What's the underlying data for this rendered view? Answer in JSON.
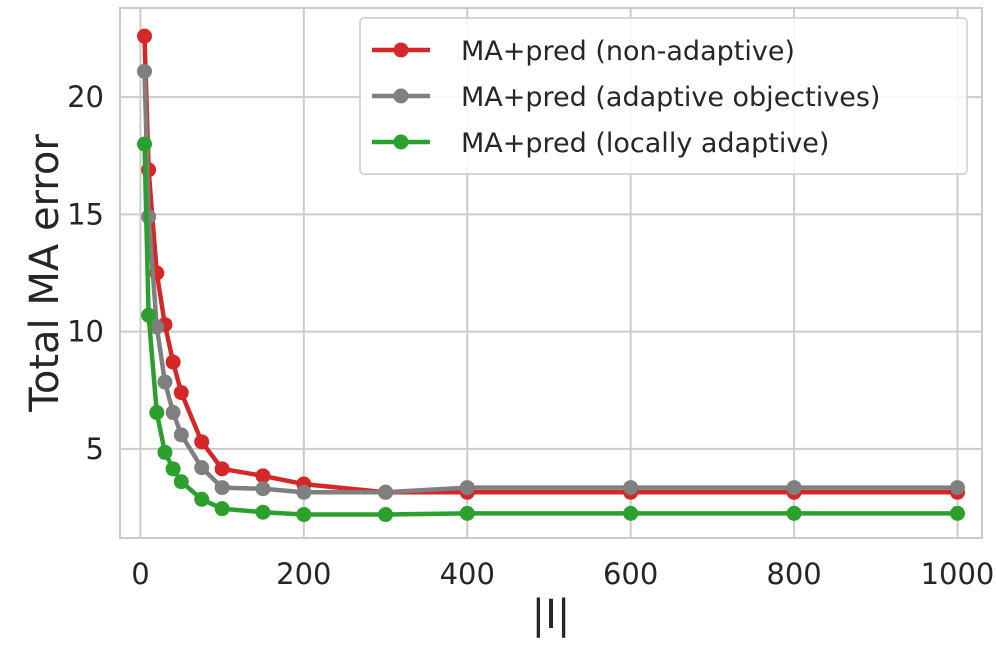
{
  "chart_data": {
    "type": "line",
    "title": "",
    "xlabel": "|I|",
    "ylabel": "Total MA error",
    "xlim": [
      -25,
      1030
    ],
    "ylim": [
      1.2,
      23.8
    ],
    "xticks": [
      0,
      200,
      400,
      600,
      800,
      1000
    ],
    "yticks": [
      5,
      10,
      15,
      20
    ],
    "grid": true,
    "legend": "top-right",
    "x": [
      5,
      10,
      20,
      30,
      40,
      50,
      75,
      100,
      150,
      200,
      300,
      400,
      600,
      800,
      1000
    ],
    "series": [
      {
        "name": "MA+pred (non-adaptive)",
        "color": "#d62728",
        "values": [
          22.6,
          16.9,
          12.5,
          10.3,
          8.7,
          7.4,
          5.3,
          4.15,
          3.85,
          3.5,
          3.15,
          3.15,
          3.15,
          3.15,
          3.15
        ]
      },
      {
        "name": "MA+pred (adaptive objectives)",
        "color": "#7f7f7f",
        "values": [
          21.1,
          14.9,
          10.2,
          7.85,
          6.55,
          5.6,
          4.2,
          3.35,
          3.3,
          3.15,
          3.15,
          3.35,
          3.35,
          3.35,
          3.35
        ]
      },
      {
        "name": "MA+pred (locally adaptive)",
        "color": "#2ca02c",
        "values": [
          18.0,
          10.7,
          6.55,
          4.85,
          4.15,
          3.6,
          2.85,
          2.45,
          2.3,
          2.2,
          2.2,
          2.25,
          2.25,
          2.25,
          2.25
        ]
      }
    ]
  }
}
